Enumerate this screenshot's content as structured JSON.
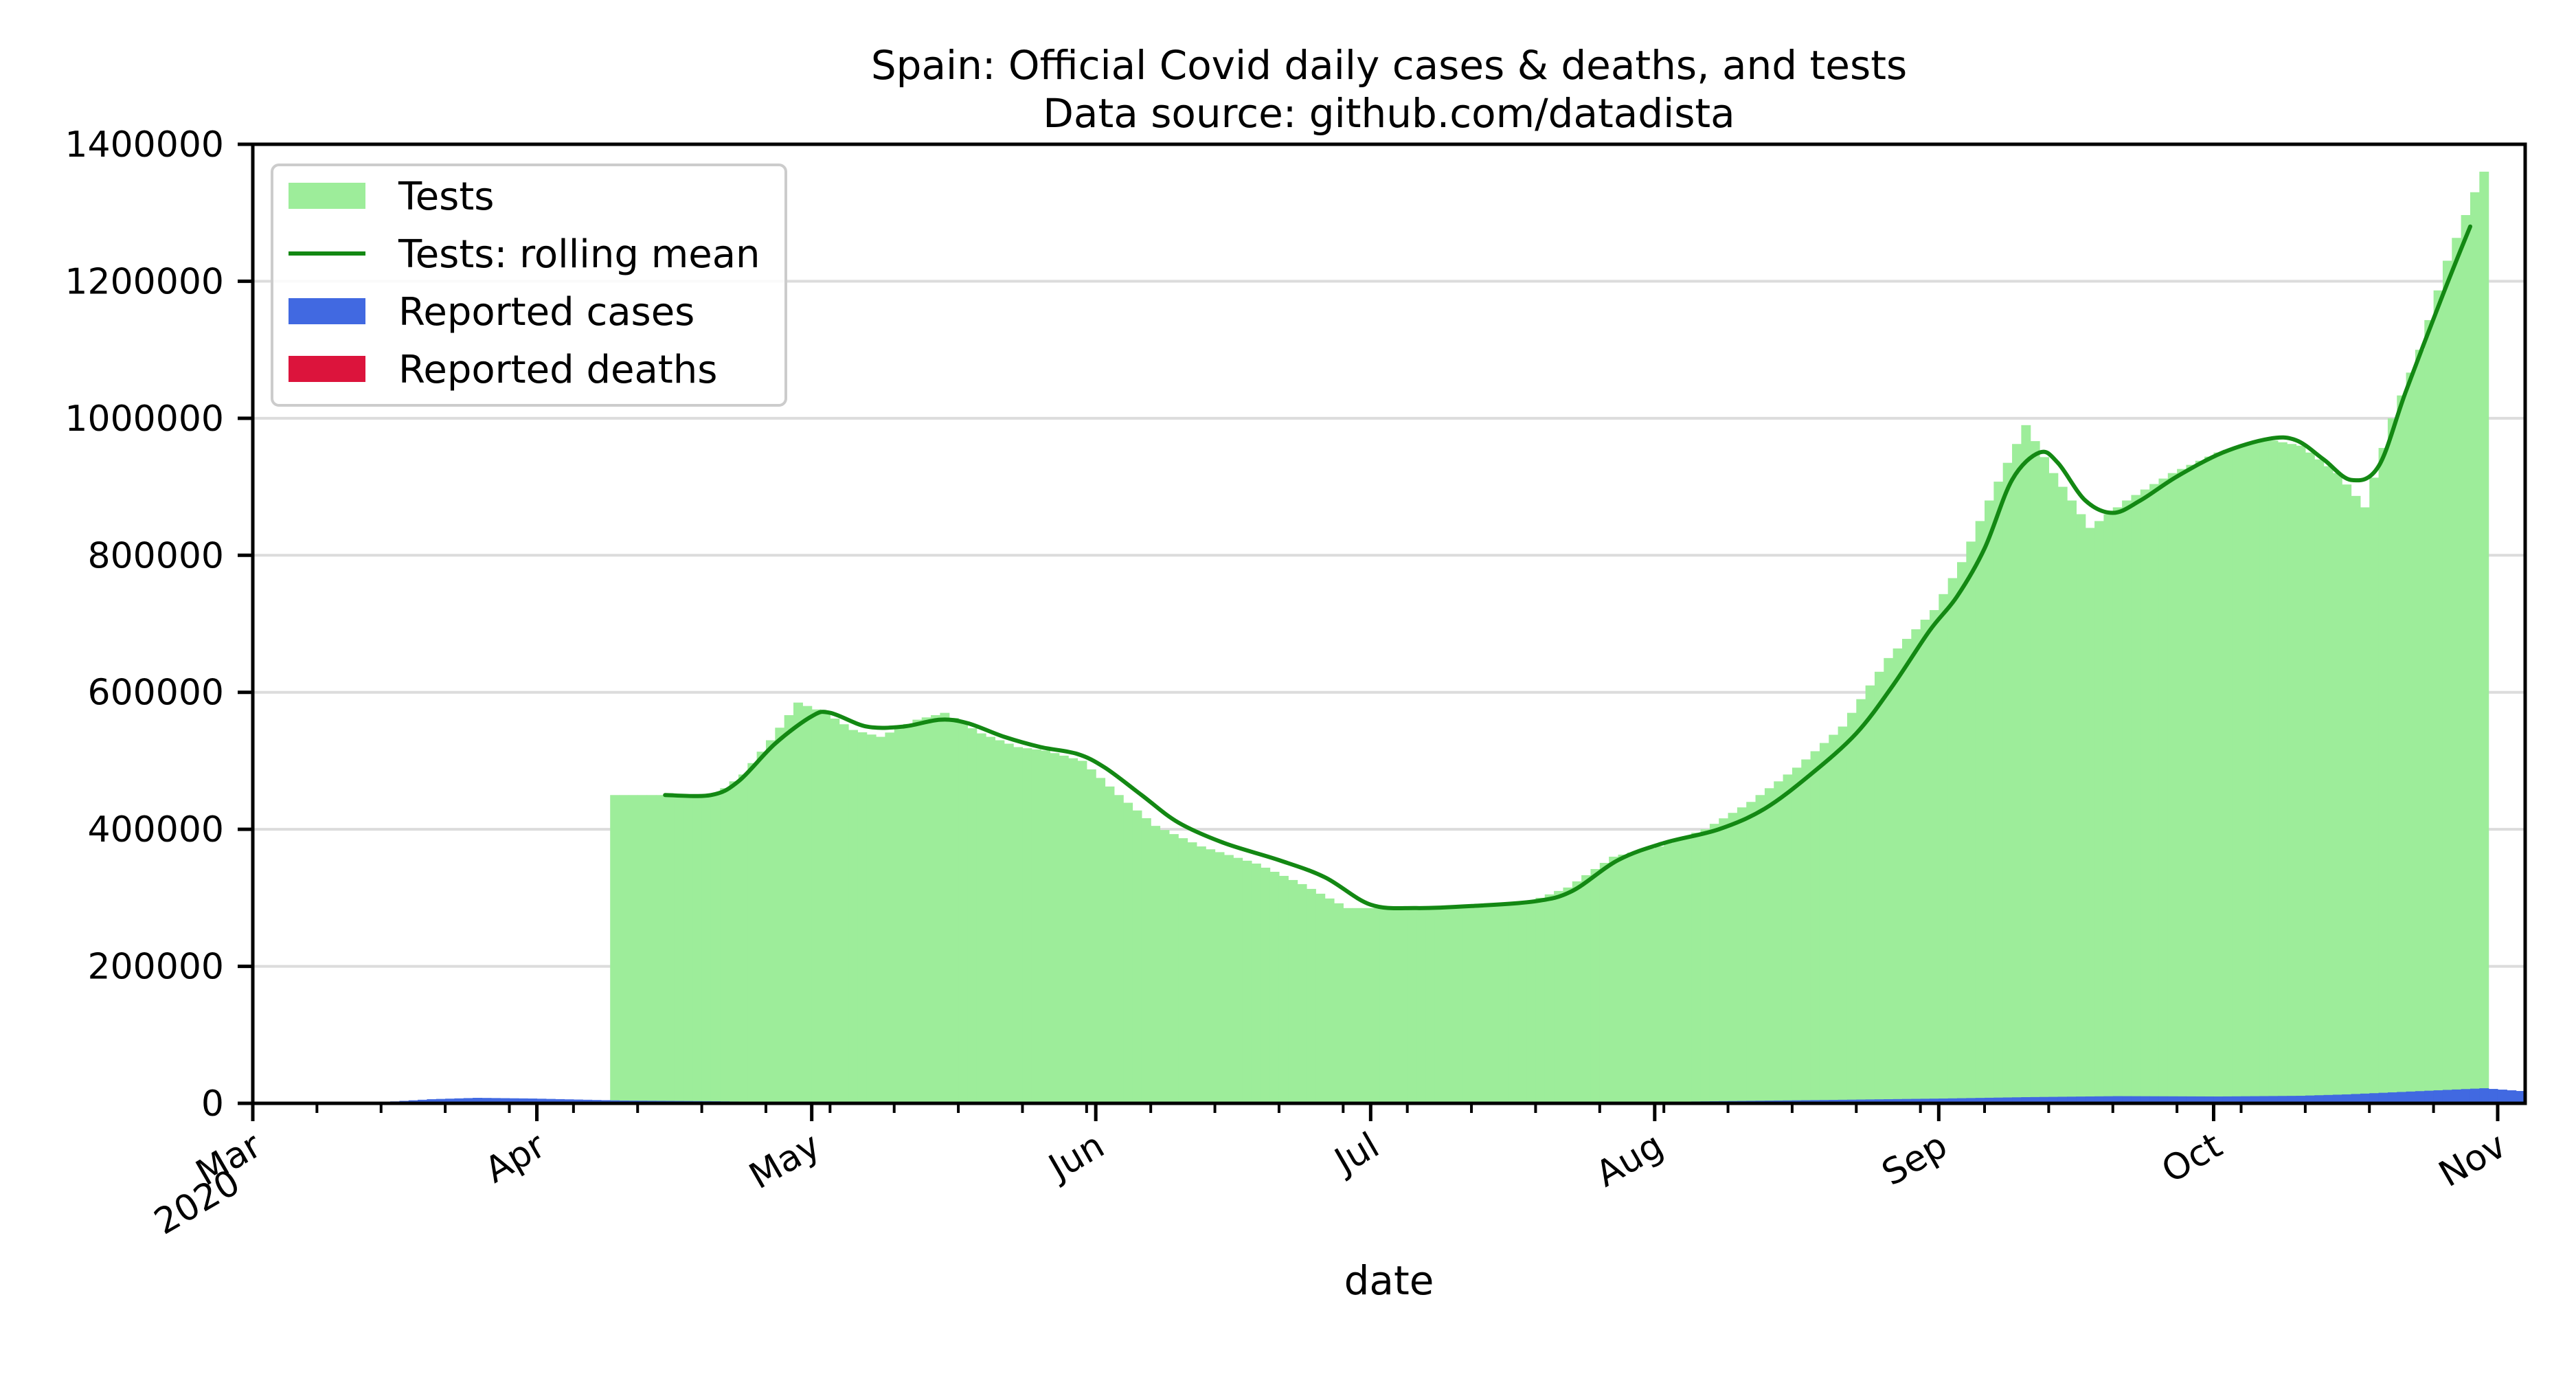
{
  "chart_data": {
    "type": "bar",
    "title": "Spain: Official Covid daily cases & deaths, and tests",
    "subtitle": "Data source: github.com/datadista",
    "xlabel": "date",
    "ylabel": "",
    "x_range": [
      "2020-03-01",
      "2020-11-04"
    ],
    "ylim": [
      0,
      1400000
    ],
    "grid": "horizontal",
    "legend_position": "top-left",
    "x_tick_labels": [
      {
        "date": "2020-03-01",
        "label": "Mar",
        "sublabel": "2020"
      },
      {
        "date": "2020-04-01",
        "label": "Apr"
      },
      {
        "date": "2020-05-01",
        "label": "May"
      },
      {
        "date": "2020-06-01",
        "label": "Jun"
      },
      {
        "date": "2020-07-01",
        "label": "Jul"
      },
      {
        "date": "2020-08-01",
        "label": "Aug"
      },
      {
        "date": "2020-09-01",
        "label": "Sep"
      },
      {
        "date": "2020-10-01",
        "label": "Oct"
      },
      {
        "date": "2020-11-01",
        "label": "Nov"
      }
    ],
    "y_tick_labels": [
      "0",
      "200000",
      "400000",
      "600000",
      "800000",
      "1000000",
      "1200000",
      "1400000"
    ],
    "y_ticks": [
      0,
      200000,
      400000,
      600000,
      800000,
      1000000,
      1200000,
      1400000
    ],
    "legend": [
      {
        "label": "Tests",
        "kind": "patch",
        "color": "#9ded9a"
      },
      {
        "label": "Tests: rolling mean",
        "kind": "line",
        "color": "#138813"
      },
      {
        "label": "Reported cases",
        "kind": "patch",
        "color": "#4169e1"
      },
      {
        "label": "Reported deaths",
        "kind": "patch",
        "color": "#dc143c"
      }
    ],
    "series": [
      {
        "name": "Tests",
        "kind": "bar",
        "color": "#9ded9a",
        "points": [
          [
            "2020-04-09",
            450000
          ],
          [
            "2020-04-20",
            450000
          ],
          [
            "2020-04-23",
            480000
          ],
          [
            "2020-04-26",
            530000
          ],
          [
            "2020-04-29",
            585000
          ],
          [
            "2020-05-02",
            570000
          ],
          [
            "2020-05-05",
            545000
          ],
          [
            "2020-05-08",
            535000
          ],
          [
            "2020-05-12",
            560000
          ],
          [
            "2020-05-15",
            570000
          ],
          [
            "2020-05-19",
            540000
          ],
          [
            "2020-05-23",
            520000
          ],
          [
            "2020-05-26",
            515000
          ],
          [
            "2020-05-30",
            500000
          ],
          [
            "2020-06-03",
            450000
          ],
          [
            "2020-06-07",
            405000
          ],
          [
            "2020-06-12",
            375000
          ],
          [
            "2020-06-18",
            350000
          ],
          [
            "2020-06-23",
            320000
          ],
          [
            "2020-06-28",
            285000
          ],
          [
            "2020-07-05",
            285000
          ],
          [
            "2020-07-12",
            290000
          ],
          [
            "2020-07-18",
            295000
          ],
          [
            "2020-07-22",
            315000
          ],
          [
            "2020-07-27",
            360000
          ],
          [
            "2020-08-01",
            375000
          ],
          [
            "2020-08-06",
            400000
          ],
          [
            "2020-08-11",
            440000
          ],
          [
            "2020-08-16",
            490000
          ],
          [
            "2020-08-21",
            550000
          ],
          [
            "2020-08-26",
            650000
          ],
          [
            "2020-08-31",
            720000
          ],
          [
            "2020-09-03",
            790000
          ],
          [
            "2020-09-06",
            880000
          ],
          [
            "2020-09-10",
            990000
          ],
          [
            "2020-09-13",
            920000
          ],
          [
            "2020-09-17",
            840000
          ],
          [
            "2020-09-21",
            880000
          ],
          [
            "2020-09-26",
            920000
          ],
          [
            "2020-10-01",
            950000
          ],
          [
            "2020-10-06",
            970000
          ],
          [
            "2020-10-10",
            960000
          ],
          [
            "2020-10-14",
            920000
          ],
          [
            "2020-10-17",
            870000
          ],
          [
            "2020-10-20",
            1000000
          ],
          [
            "2020-10-23",
            1100000
          ],
          [
            "2020-10-26",
            1230000
          ],
          [
            "2020-10-29",
            1330000
          ],
          [
            "2020-10-30",
            1360000
          ]
        ]
      },
      {
        "name": "Tests: rolling mean",
        "kind": "line",
        "color": "#138813",
        "points": [
          [
            "2020-04-15",
            450000
          ],
          [
            "2020-04-20",
            450000
          ],
          [
            "2020-04-23",
            470000
          ],
          [
            "2020-04-27",
            525000
          ],
          [
            "2020-05-01",
            565000
          ],
          [
            "2020-05-03",
            570000
          ],
          [
            "2020-05-07",
            550000
          ],
          [
            "2020-05-11",
            550000
          ],
          [
            "2020-05-15",
            560000
          ],
          [
            "2020-05-18",
            555000
          ],
          [
            "2020-05-22",
            535000
          ],
          [
            "2020-05-26",
            520000
          ],
          [
            "2020-05-30",
            510000
          ],
          [
            "2020-06-02",
            490000
          ],
          [
            "2020-06-06",
            450000
          ],
          [
            "2020-06-10",
            410000
          ],
          [
            "2020-06-15",
            380000
          ],
          [
            "2020-06-21",
            355000
          ],
          [
            "2020-06-26",
            330000
          ],
          [
            "2020-07-01",
            290000
          ],
          [
            "2020-07-06",
            285000
          ],
          [
            "2020-07-12",
            288000
          ],
          [
            "2020-07-19",
            295000
          ],
          [
            "2020-07-23",
            310000
          ],
          [
            "2020-07-28",
            355000
          ],
          [
            "2020-08-02",
            380000
          ],
          [
            "2020-08-08",
            400000
          ],
          [
            "2020-08-13",
            430000
          ],
          [
            "2020-08-18",
            480000
          ],
          [
            "2020-08-23",
            540000
          ],
          [
            "2020-08-27",
            610000
          ],
          [
            "2020-08-31",
            690000
          ],
          [
            "2020-09-03",
            740000
          ],
          [
            "2020-09-06",
            810000
          ],
          [
            "2020-09-09",
            910000
          ],
          [
            "2020-09-12",
            950000
          ],
          [
            "2020-09-14",
            935000
          ],
          [
            "2020-09-17",
            880000
          ],
          [
            "2020-09-20",
            862000
          ],
          [
            "2020-09-23",
            880000
          ],
          [
            "2020-09-27",
            915000
          ],
          [
            "2020-10-02",
            950000
          ],
          [
            "2020-10-07",
            970000
          ],
          [
            "2020-10-10",
            968000
          ],
          [
            "2020-10-13",
            940000
          ],
          [
            "2020-10-16",
            910000
          ],
          [
            "2020-10-19",
            930000
          ],
          [
            "2020-10-22",
            1040000
          ],
          [
            "2020-10-26",
            1180000
          ],
          [
            "2020-10-29",
            1280000
          ]
        ]
      },
      {
        "name": "Reported cases",
        "kind": "bar",
        "color": "#4169e1",
        "points": [
          [
            "2020-03-01",
            0
          ],
          [
            "2020-03-10",
            500
          ],
          [
            "2020-03-15",
            2000
          ],
          [
            "2020-03-20",
            6000
          ],
          [
            "2020-03-25",
            8000
          ],
          [
            "2020-03-31",
            7000
          ],
          [
            "2020-04-05",
            5500
          ],
          [
            "2020-04-10",
            4000
          ],
          [
            "2020-04-15",
            3500
          ],
          [
            "2020-04-20",
            3000
          ],
          [
            "2020-04-25",
            2000
          ],
          [
            "2020-05-01",
            1000
          ],
          [
            "2020-05-15",
            500
          ],
          [
            "2020-06-01",
            300
          ],
          [
            "2020-07-01",
            400
          ],
          [
            "2020-07-20",
            1000
          ],
          [
            "2020-08-01",
            2000
          ],
          [
            "2020-08-10",
            3500
          ],
          [
            "2020-08-20",
            5000
          ],
          [
            "2020-09-01",
            7000
          ],
          [
            "2020-09-10",
            9000
          ],
          [
            "2020-09-20",
            10500
          ],
          [
            "2020-10-01",
            10000
          ],
          [
            "2020-10-10",
            11000
          ],
          [
            "2020-10-15",
            13000
          ],
          [
            "2020-10-20",
            16000
          ],
          [
            "2020-10-25",
            19000
          ],
          [
            "2020-10-30",
            22000
          ],
          [
            "2020-11-01",
            20000
          ],
          [
            "2020-11-03",
            18000
          ]
        ]
      },
      {
        "name": "Reported deaths",
        "kind": "bar",
        "color": "#dc143c",
        "points": [
          [
            "2020-03-20",
            300
          ],
          [
            "2020-04-01",
            900
          ],
          [
            "2020-04-15",
            500
          ],
          [
            "2020-05-01",
            250
          ],
          [
            "2020-06-01",
            50
          ],
          [
            "2020-08-01",
            30
          ],
          [
            "2020-09-01",
            150
          ],
          [
            "2020-10-01",
            200
          ],
          [
            "2020-11-01",
            300
          ]
        ]
      }
    ]
  }
}
